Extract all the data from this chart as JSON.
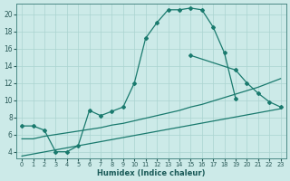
{
  "xlabel": "Humidex (Indice chaleur)",
  "background_color": "#cceae8",
  "line_color": "#1a7a6e",
  "xlim": [
    -0.5,
    23.5
  ],
  "ylim": [
    3.2,
    21.2
  ],
  "xticks": [
    0,
    1,
    2,
    3,
    4,
    5,
    6,
    7,
    8,
    9,
    10,
    11,
    12,
    13,
    14,
    15,
    16,
    17,
    18,
    19,
    20,
    21,
    22,
    23
  ],
  "yticks": [
    4,
    6,
    8,
    10,
    12,
    14,
    16,
    18,
    20
  ],
  "curve1_x": [
    0,
    1,
    2,
    3,
    4,
    5,
    6,
    7,
    8,
    9,
    10,
    11,
    12,
    13,
    14,
    15,
    16,
    17,
    18,
    19
  ],
  "curve1_y": [
    7.0,
    7.0,
    6.5,
    4.0,
    4.0,
    4.7,
    8.8,
    8.2,
    8.7,
    9.2,
    12.0,
    17.2,
    19.0,
    20.5,
    20.5,
    20.7,
    20.5,
    18.5,
    15.5,
    10.2
  ],
  "curve2_x": [
    0,
    1,
    2,
    3,
    4,
    5,
    6,
    7,
    8,
    9,
    10,
    11,
    12,
    13,
    14,
    15,
    16,
    17,
    18,
    19,
    20,
    21,
    22,
    23
  ],
  "curve2_y": [
    5.5,
    5.5,
    5.8,
    6.0,
    6.2,
    6.4,
    6.6,
    6.8,
    7.1,
    7.3,
    7.6,
    7.9,
    8.2,
    8.5,
    8.8,
    9.2,
    9.5,
    9.9,
    10.3,
    10.7,
    11.1,
    11.5,
    12.0,
    12.5
  ],
  "curve3_x": [
    0,
    23
  ],
  "curve3_y": [
    3.5,
    9.0
  ],
  "curve4_x": [
    15,
    19,
    20,
    21,
    22,
    23
  ],
  "curve4_y": [
    15.2,
    13.5,
    12.0,
    10.8,
    9.8,
    9.2
  ]
}
